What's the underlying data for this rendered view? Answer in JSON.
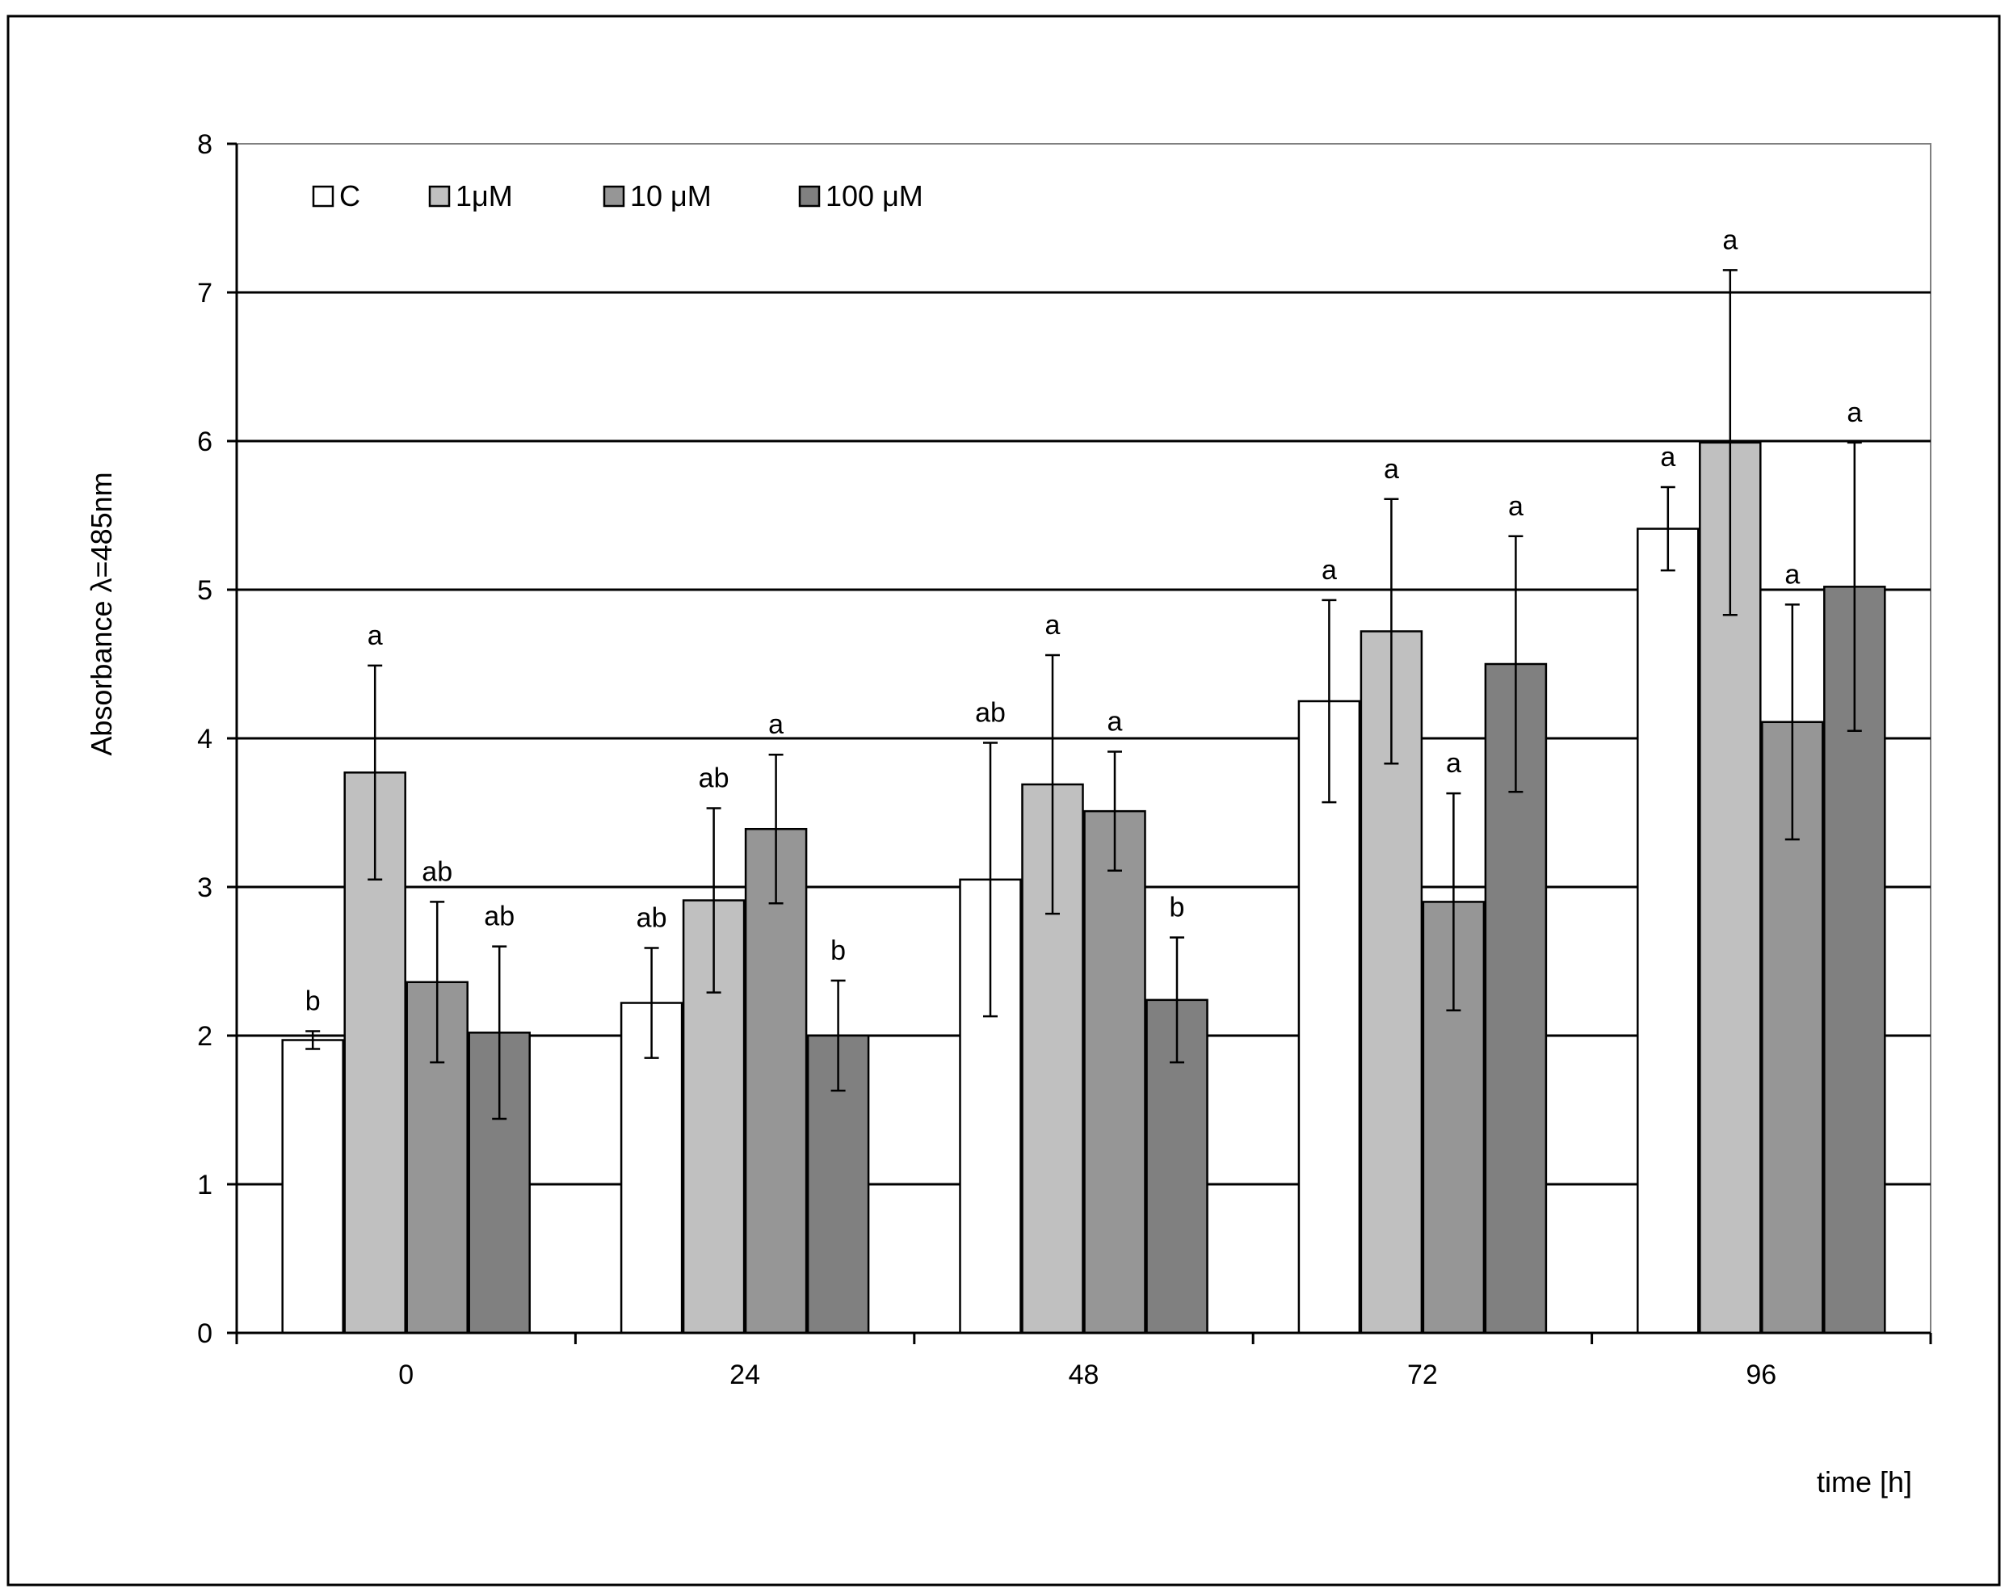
{
  "chart_data": {
    "type": "bar",
    "title": "",
    "xlabel": "time [h]",
    "ylabel": "Absorbance λ=485nm",
    "categories": [
      "0",
      "24",
      "48",
      "72",
      "96"
    ],
    "ylim": [
      0,
      8
    ],
    "yticks": [
      "0",
      "1",
      "2",
      "3",
      "4",
      "5",
      "6",
      "7",
      "8"
    ],
    "grid": true,
    "legend_position": "top-left",
    "series": [
      {
        "name": "C",
        "color": "#ffffff",
        "values": [
          1.97,
          2.22,
          3.05,
          4.25,
          5.41
        ],
        "error": [
          0.06,
          0.37,
          0.92,
          0.68,
          0.28
        ],
        "labels": [
          "b",
          "ab",
          "ab",
          "a",
          "a"
        ]
      },
      {
        "name": "1μM",
        "color": "#c0c0c0",
        "values": [
          3.77,
          2.91,
          3.69,
          4.72,
          5.99
        ],
        "error": [
          0.72,
          0.62,
          0.87,
          0.89,
          1.16
        ],
        "labels": [
          "a",
          "ab",
          "a",
          "a",
          "a"
        ]
      },
      {
        "name": "10 μM",
        "color": "#969696",
        "values": [
          2.36,
          3.39,
          3.51,
          2.9,
          4.11
        ],
        "error": [
          0.54,
          0.5,
          0.4,
          0.73,
          0.79
        ],
        "labels": [
          "ab",
          "a",
          "a",
          "a",
          "a"
        ]
      },
      {
        "name": "100 μM",
        "color": "#808080",
        "values": [
          2.02,
          2.0,
          2.24,
          4.5,
          5.02
        ],
        "error": [
          0.58,
          0.37,
          0.42,
          0.86,
          0.97
        ],
        "labels": [
          "ab",
          "b",
          "b",
          "a",
          "a"
        ]
      }
    ]
  }
}
